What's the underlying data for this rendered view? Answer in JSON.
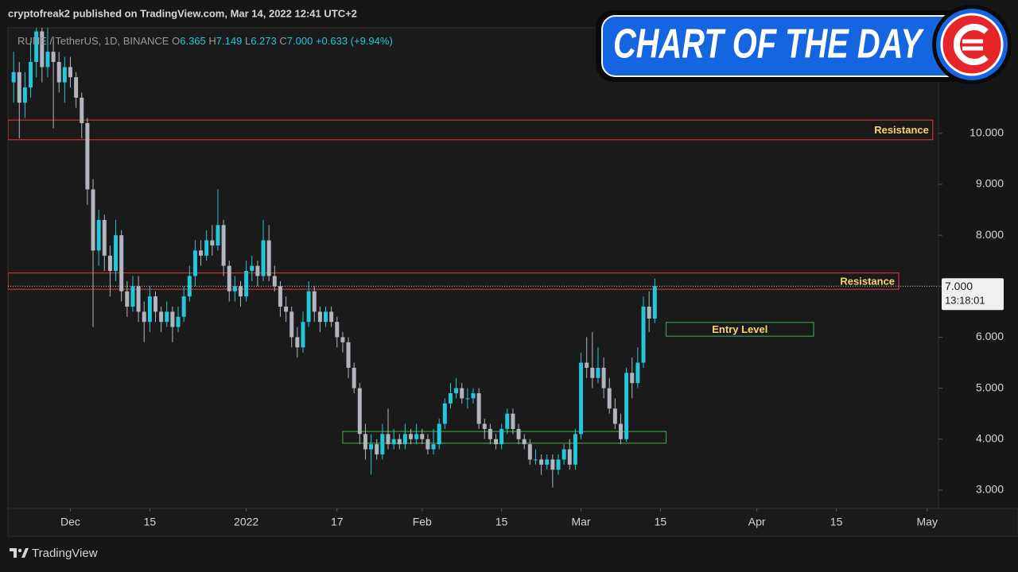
{
  "chart_data": {
    "type": "candlestick",
    "title": "cryptofreak2 published on TradingView.com, Mar 14, 2022 12:41 UTC+2",
    "legend": {
      "symbol": "RUNE / TetherUS, 1D, BINANCE",
      "ohlc_labels": [
        "O",
        "H",
        "L",
        "C"
      ],
      "open": "6.365",
      "high": "7.149",
      "low": "6.273",
      "close": "7.000",
      "change": "+0.633 (+9.94%)"
    },
    "badge": "CHART OF THE DAY",
    "footer": "TradingView",
    "up_color": "#26c6da",
    "down_color": "#b2b5be",
    "x": [
      "2021-11-21",
      "2021-11-22",
      "2021-11-23",
      "2021-11-24",
      "2021-11-25",
      "2021-11-26",
      "2021-11-27",
      "2021-11-28",
      "2021-11-29",
      "2021-11-30",
      "2021-12-01",
      "2021-12-02",
      "2021-12-03",
      "2021-12-04",
      "2021-12-05",
      "2021-12-06",
      "2021-12-07",
      "2021-12-08",
      "2021-12-09",
      "2021-12-10",
      "2021-12-11",
      "2021-12-12",
      "2021-12-13",
      "2021-12-14",
      "2021-12-15",
      "2021-12-16",
      "2021-12-17",
      "2021-12-18",
      "2021-12-19",
      "2021-12-20",
      "2021-12-21",
      "2021-12-22",
      "2021-12-23",
      "2021-12-24",
      "2021-12-25",
      "2021-12-26",
      "2021-12-27",
      "2021-12-28",
      "2021-12-29",
      "2021-12-30",
      "2021-12-31",
      "2022-01-01",
      "2022-01-02",
      "2022-01-03",
      "2022-01-04",
      "2022-01-05",
      "2022-01-06",
      "2022-01-07",
      "2022-01-08",
      "2022-01-09",
      "2022-01-10",
      "2022-01-11",
      "2022-01-12",
      "2022-01-13",
      "2022-01-14",
      "2022-01-15",
      "2022-01-16",
      "2022-01-17",
      "2022-01-18",
      "2022-01-19",
      "2022-01-20",
      "2022-01-21",
      "2022-01-22",
      "2022-01-23",
      "2022-01-24",
      "2022-01-25",
      "2022-01-26",
      "2022-01-27",
      "2022-01-28",
      "2022-01-29",
      "2022-01-30",
      "2022-01-31",
      "2022-02-01",
      "2022-02-02",
      "2022-02-03",
      "2022-02-04",
      "2022-02-05",
      "2022-02-06",
      "2022-02-07",
      "2022-02-08",
      "2022-02-09",
      "2022-02-10",
      "2022-02-11",
      "2022-02-12",
      "2022-02-13",
      "2022-02-14",
      "2022-02-15",
      "2022-02-16",
      "2022-02-17",
      "2022-02-18",
      "2022-02-19",
      "2022-02-20",
      "2022-02-21",
      "2022-02-22",
      "2022-02-23",
      "2022-02-24",
      "2022-02-25",
      "2022-02-26",
      "2022-02-27",
      "2022-02-28",
      "2022-03-01",
      "2022-03-02",
      "2022-03-03",
      "2022-03-04",
      "2022-03-05",
      "2022-03-06",
      "2022-03-07",
      "2022-03-08",
      "2022-03-09",
      "2022-03-10",
      "2022-03-11",
      "2022-03-12",
      "2022-03-13",
      "2022-03-14"
    ],
    "open": [
      11.0,
      11.2,
      10.6,
      10.9,
      11.4,
      12.0,
      11.3,
      11.6,
      11.4,
      11.0,
      11.3,
      11.1,
      10.7,
      10.2,
      8.9,
      7.7,
      8.3,
      7.6,
      7.3,
      8.0,
      6.9,
      6.6,
      7.0,
      6.5,
      6.3,
      6.8,
      6.5,
      6.3,
      6.5,
      6.2,
      6.4,
      6.8,
      7.2,
      7.7,
      7.6,
      7.9,
      7.8,
      8.2,
      7.4,
      6.9,
      7.0,
      6.8,
      7.3,
      7.4,
      7.2,
      7.9,
      7.2,
      7.0,
      6.6,
      6.5,
      6.0,
      5.8,
      6.3,
      6.9,
      6.5,
      6.3,
      6.5,
      6.3,
      6.0,
      5.9,
      5.4,
      5.0,
      4.1,
      3.8,
      3.9,
      3.7,
      4.1,
      3.9,
      4.0,
      3.9,
      4.1,
      4.0,
      4.1,
      4.0,
      3.8,
      3.9,
      4.3,
      4.7,
      4.9,
      5.0,
      4.8,
      4.8,
      4.9,
      4.3,
      4.2,
      4.0,
      3.9,
      4.2,
      4.5,
      4.2,
      4.0,
      3.9,
      3.6,
      3.6,
      3.5,
      3.6,
      3.4,
      3.6,
      3.8,
      3.5,
      4.1,
      5.5,
      5.4,
      5.2,
      5.4,
      5.0,
      4.6,
      4.3,
      4.0,
      5.3,
      5.1,
      5.5,
      6.6,
      6.365
    ],
    "high": [
      11.6,
      11.4,
      11.2,
      11.8,
      12.2,
      12.2,
      12.1,
      11.9,
      11.6,
      11.5,
      11.5,
      11.2,
      10.8,
      10.3,
      9.1,
      8.5,
      8.4,
      7.8,
      8.3,
      8.1,
      7.1,
      7.2,
      7.2,
      6.7,
      7.0,
      6.9,
      6.6,
      6.7,
      6.6,
      6.6,
      7.0,
      7.4,
      7.9,
      7.9,
      8.1,
      8.2,
      8.9,
      8.3,
      7.5,
      7.2,
      7.1,
      7.5,
      7.6,
      7.5,
      8.3,
      8.2,
      7.4,
      7.1,
      6.8,
      6.6,
      6.2,
      6.5,
      7.1,
      7.0,
      6.6,
      6.6,
      6.6,
      6.4,
      6.1,
      6.0,
      5.5,
      5.1,
      4.3,
      4.1,
      4.0,
      4.3,
      4.6,
      4.2,
      4.1,
      4.3,
      4.2,
      4.3,
      4.2,
      4.1,
      4.2,
      4.4,
      4.8,
      5.1,
      5.2,
      5.1,
      5.0,
      5.0,
      5.0,
      4.4,
      4.3,
      4.1,
      4.3,
      4.6,
      4.6,
      4.3,
      4.1,
      4.0,
      3.8,
      3.7,
      3.7,
      3.7,
      3.7,
      3.9,
      4.0,
      4.2,
      5.7,
      6.0,
      6.1,
      5.8,
      5.6,
      5.2,
      4.8,
      4.5,
      5.4,
      5.6,
      5.8,
      6.8,
      6.9,
      7.149
    ],
    "low": [
      10.6,
      9.9,
      10.3,
      10.7,
      11.1,
      11.0,
      11.1,
      10.1,
      10.8,
      10.6,
      10.9,
      10.5,
      9.9,
      8.6,
      6.2,
      7.4,
      7.3,
      6.8,
      7.1,
      6.7,
      6.4,
      6.5,
      6.3,
      5.9,
      6.1,
      6.3,
      6.1,
      6.2,
      5.9,
      6.1,
      6.3,
      6.7,
      7.0,
      7.4,
      7.5,
      7.6,
      7.7,
      7.2,
      6.7,
      6.7,
      6.6,
      6.7,
      7.1,
      7.0,
      7.1,
      7.1,
      6.9,
      6.4,
      6.3,
      5.8,
      5.6,
      5.7,
      6.2,
      6.3,
      6.1,
      6.2,
      6.2,
      5.8,
      5.7,
      5.2,
      4.9,
      3.9,
      3.6,
      3.3,
      3.6,
      3.6,
      3.8,
      3.8,
      3.8,
      3.8,
      3.9,
      3.9,
      3.9,
      3.7,
      3.7,
      3.8,
      4.2,
      4.6,
      4.8,
      4.7,
      4.6,
      4.7,
      4.2,
      4.0,
      3.9,
      3.8,
      3.8,
      4.1,
      4.1,
      3.9,
      3.8,
      3.5,
      3.5,
      3.3,
      3.4,
      3.05,
      3.3,
      3.5,
      3.4,
      3.4,
      4.0,
      5.2,
      5.0,
      5.1,
      4.8,
      4.5,
      4.2,
      3.9,
      3.95,
      4.8,
      5.0,
      5.4,
      6.1,
      6.273
    ],
    "close": [
      11.2,
      10.6,
      10.9,
      11.4,
      12.0,
      11.3,
      11.6,
      11.4,
      11.0,
      11.3,
      11.1,
      10.7,
      10.2,
      8.9,
      7.7,
      8.3,
      7.6,
      7.3,
      8.0,
      6.9,
      6.6,
      7.0,
      6.5,
      6.3,
      6.8,
      6.5,
      6.3,
      6.5,
      6.2,
      6.4,
      6.8,
      7.2,
      7.7,
      7.6,
      7.9,
      7.8,
      8.2,
      7.4,
      6.9,
      7.0,
      6.8,
      7.3,
      7.4,
      7.2,
      7.9,
      7.2,
      7.0,
      6.6,
      6.5,
      6.0,
      5.8,
      6.3,
      6.9,
      6.5,
      6.3,
      6.5,
      6.3,
      6.0,
      5.9,
      5.4,
      5.0,
      4.1,
      3.8,
      3.9,
      3.7,
      4.1,
      3.9,
      4.0,
      3.9,
      4.1,
      4.0,
      4.1,
      4.0,
      3.8,
      3.9,
      4.3,
      4.7,
      4.9,
      5.0,
      4.8,
      4.8,
      4.9,
      4.3,
      4.2,
      4.0,
      3.9,
      4.2,
      4.5,
      4.2,
      4.0,
      3.9,
      3.6,
      3.6,
      3.5,
      3.6,
      3.4,
      3.6,
      3.8,
      3.5,
      4.1,
      5.5,
      5.4,
      5.2,
      5.4,
      5.0,
      4.6,
      4.3,
      4.0,
      5.3,
      5.1,
      5.5,
      6.6,
      6.365,
      7.0
    ],
    "ylim": [
      2.64,
      12.07
    ],
    "yticks": [
      {
        "value": 3,
        "label": "3.000"
      },
      {
        "value": 4,
        "label": "4.000"
      },
      {
        "value": 5,
        "label": "5.000"
      },
      {
        "value": 6,
        "label": "6.000"
      },
      {
        "value": 7,
        "label": "7.000"
      },
      {
        "value": 8,
        "label": "8.000"
      },
      {
        "value": 9,
        "label": "9.000"
      },
      {
        "value": 10,
        "label": "10.000"
      }
    ],
    "xlim": [
      "2021-11-20",
      "2022-05-03"
    ],
    "xticks": [
      {
        "value": "2021-12-01",
        "label": "Dec"
      },
      {
        "value": "2021-12-15",
        "label": "15"
      },
      {
        "value": "2022-01-01",
        "label": "2022"
      },
      {
        "value": "2022-01-17",
        "label": "17"
      },
      {
        "value": "2022-02-01",
        "label": "Feb"
      },
      {
        "value": "2022-02-15",
        "label": "15"
      },
      {
        "value": "2022-03-01",
        "label": "Mar"
      },
      {
        "value": "2022-03-15",
        "label": "15"
      },
      {
        "value": "2022-04-01",
        "label": "Apr"
      },
      {
        "value": "2022-04-15",
        "label": "15"
      },
      {
        "value": "2022-05-01",
        "label": "May"
      }
    ],
    "last_price": {
      "value": 7.0,
      "label": "7.000",
      "countdown": "13:18:01"
    },
    "zones": [
      {
        "label": "Resistance",
        "ymin": 9.875,
        "ymax": 10.26,
        "x0": "2021-11-20",
        "x1": "2022-05-02",
        "color": "#e53935",
        "text_color": "#f5d76e"
      },
      {
        "label": "Resistance",
        "ymin": 6.94,
        "ymax": 7.26,
        "x0": "2021-11-20",
        "x1": "2022-04-26",
        "color": "#e53935",
        "text_color": "#f5d76e"
      },
      {
        "label": "Entry Level",
        "ymin": 6.02,
        "ymax": 6.29,
        "x0": "2022-03-16",
        "x1": "2022-04-11",
        "color": "#4caf50",
        "text_color": "#f5d76e"
      },
      {
        "ymin": 3.92,
        "ymax": 4.15,
        "x0": "2022-01-18",
        "x1": "2022-03-16",
        "color": "#4caf50"
      }
    ]
  }
}
